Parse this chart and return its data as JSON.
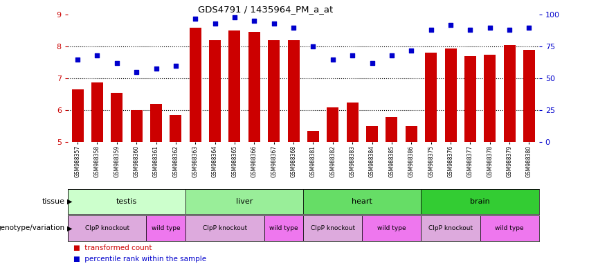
{
  "title": "GDS4791 / 1435964_PM_a_at",
  "samples": [
    "GSM988357",
    "GSM988358",
    "GSM988359",
    "GSM988360",
    "GSM988361",
    "GSM988362",
    "GSM988363",
    "GSM988364",
    "GSM988365",
    "GSM988366",
    "GSM988367",
    "GSM988368",
    "GSM988381",
    "GSM988382",
    "GSM988383",
    "GSM988384",
    "GSM988385",
    "GSM988386",
    "GSM988375",
    "GSM988376",
    "GSM988377",
    "GSM988378",
    "GSM988379",
    "GSM988380"
  ],
  "bar_values": [
    6.65,
    6.88,
    6.55,
    6.0,
    6.2,
    5.85,
    8.6,
    8.2,
    8.5,
    8.45,
    8.2,
    8.2,
    5.35,
    6.1,
    6.25,
    5.5,
    5.8,
    5.5,
    7.8,
    7.95,
    7.7,
    7.75,
    8.05,
    7.9
  ],
  "dot_values": [
    65,
    68,
    62,
    55,
    58,
    60,
    97,
    93,
    98,
    95,
    93,
    90,
    75,
    65,
    68,
    62,
    68,
    72,
    88,
    92,
    88,
    90,
    88,
    90
  ],
  "bar_color": "#cc0000",
  "dot_color": "#0000cc",
  "ylim_left": [
    5,
    9
  ],
  "ylim_right": [
    0,
    100
  ],
  "yticks_left": [
    5,
    6,
    7,
    8,
    9
  ],
  "yticks_right": [
    0,
    25,
    50,
    75,
    100
  ],
  "tissue_colors": [
    "#ccffcc",
    "#99ee99",
    "#66dd66",
    "#33cc33"
  ],
  "tissue_labels": [
    "testis",
    "liver",
    "heart",
    "brain"
  ],
  "tissue_ranges": [
    [
      0,
      6
    ],
    [
      6,
      12
    ],
    [
      12,
      18
    ],
    [
      18,
      24
    ]
  ],
  "geno_colors": [
    "#ddaadd",
    "#ee77ee",
    "#ddaadd",
    "#ee77ee",
    "#ddaadd",
    "#ee77ee",
    "#ddaadd",
    "#ee77ee"
  ],
  "geno_labels": [
    "ClpP knockout",
    "wild type",
    "ClpP knockout",
    "wild type",
    "ClpP knockout",
    "wild type",
    "ClpP knockout",
    "wild type"
  ],
  "geno_ranges": [
    [
      0,
      4
    ],
    [
      4,
      6
    ],
    [
      6,
      10
    ],
    [
      10,
      12
    ],
    [
      12,
      15
    ],
    [
      15,
      18
    ],
    [
      18,
      21
    ],
    [
      21,
      24
    ]
  ],
  "tissue_label": "tissue",
  "genotype_label": "genotype/variation",
  "legend_bar": "transformed count",
  "legend_dot": "percentile rank within the sample",
  "dotted_lines": [
    6,
    7,
    8
  ],
  "background_color": "#ffffff"
}
